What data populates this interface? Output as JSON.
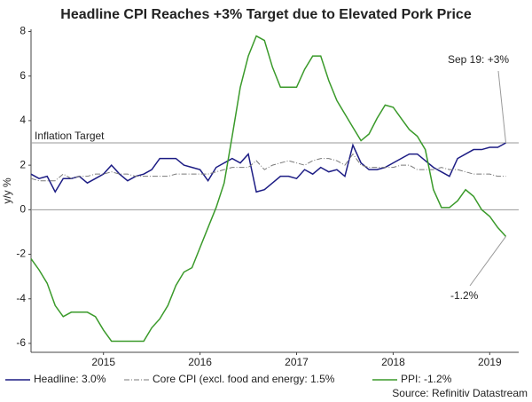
{
  "chart_data": {
    "type": "line",
    "title": "Headline CPI Reaches +3% Target due to Elevated Pork Price",
    "y_label": "y/y %",
    "source": "Source: Refinitiv Datastream",
    "x": [
      2014.75,
      2014.833,
      2014.917,
      2015,
      2015.083,
      2015.167,
      2015.25,
      2015.333,
      2015.417,
      2015.5,
      2015.583,
      2015.667,
      2015.75,
      2015.833,
      2015.917,
      2016,
      2016.083,
      2016.167,
      2016.25,
      2016.333,
      2016.417,
      2016.5,
      2016.583,
      2016.667,
      2016.75,
      2016.833,
      2016.917,
      2017,
      2017.083,
      2017.167,
      2017.25,
      2017.333,
      2017.417,
      2017.5,
      2017.583,
      2017.667,
      2017.75,
      2017.833,
      2017.917,
      2018,
      2018.083,
      2018.167,
      2018.25,
      2018.333,
      2018.417,
      2018.5,
      2018.583,
      2018.667,
      2018.75,
      2018.833,
      2018.917,
      2019,
      2019.083,
      2019.167,
      2019.25,
      2019.333,
      2019.417,
      2019.5,
      2019.583,
      2019.667
    ],
    "xlim": [
      2014.75,
      2019.8
    ],
    "xticks": [
      {
        "value": 2015.5,
        "label": "2015"
      },
      {
        "value": 2016.5,
        "label": "2016"
      },
      {
        "value": 2017.5,
        "label": "2017"
      },
      {
        "value": 2018.5,
        "label": "2018"
      },
      {
        "value": 2019.5,
        "label": "2019"
      }
    ],
    "ylim": [
      -6.4,
      8.1
    ],
    "yticks": [
      -6,
      -4,
      -2,
      0,
      2,
      4,
      6,
      8
    ],
    "reference_lines": [
      {
        "value": 3,
        "label": "Inflation Target"
      },
      {
        "value": 0
      }
    ],
    "series": [
      {
        "name": "Headline: 3.0%",
        "color": "#1c1c84",
        "style": "solid",
        "values": [
          1.6,
          1.4,
          1.5,
          0.8,
          1.4,
          1.4,
          1.5,
          1.2,
          1.4,
          1.6,
          2.0,
          1.6,
          1.3,
          1.5,
          1.6,
          1.8,
          2.3,
          2.3,
          2.3,
          2.0,
          1.9,
          1.8,
          1.3,
          1.9,
          2.1,
          2.3,
          2.1,
          2.5,
          0.8,
          0.9,
          1.2,
          1.5,
          1.5,
          1.4,
          1.8,
          1.6,
          1.9,
          1.7,
          1.8,
          1.5,
          2.9,
          2.1,
          1.8,
          1.8,
          1.9,
          2.1,
          2.3,
          2.5,
          2.5,
          2.2,
          1.9,
          1.7,
          1.5,
          2.3,
          2.5,
          2.7,
          2.7,
          2.8,
          2.8,
          3.0
        ]
      },
      {
        "name": "Core CPI (excl. food and energy: 1.5%",
        "color": "#7a7a7a",
        "style": "dashdot",
        "values": [
          1.4,
          1.3,
          1.3,
          1.3,
          1.6,
          1.4,
          1.5,
          1.5,
          1.6,
          1.6,
          1.7,
          1.6,
          1.6,
          1.5,
          1.5,
          1.5,
          1.5,
          1.5,
          1.6,
          1.6,
          1.6,
          1.6,
          1.6,
          1.7,
          1.8,
          1.9,
          1.9,
          1.9,
          2.2,
          1.8,
          2.0,
          2.1,
          2.2,
          2.1,
          2.0,
          2.2,
          2.3,
          2.3,
          2.2,
          2.0,
          2.5,
          2.0,
          1.9,
          1.9,
          1.9,
          1.9,
          2.0,
          2.0,
          1.8,
          1.8,
          1.8,
          1.9,
          1.8,
          1.8,
          1.7,
          1.6,
          1.6,
          1.6,
          1.5,
          1.5
        ]
      },
      {
        "name": "PPI: -1.2%",
        "color": "#3a9a2a",
        "style": "solid",
        "values": [
          -2.2,
          -2.7,
          -3.3,
          -4.3,
          -4.8,
          -4.6,
          -4.6,
          -4.6,
          -4.8,
          -5.4,
          -5.9,
          -5.9,
          -5.9,
          -5.9,
          -5.9,
          -5.3,
          -4.9,
          -4.3,
          -3.4,
          -2.8,
          -2.6,
          -1.7,
          -0.8,
          0.1,
          1.2,
          3.3,
          5.5,
          6.9,
          7.8,
          7.6,
          6.4,
          5.5,
          5.5,
          5.5,
          6.3,
          6.9,
          6.9,
          5.8,
          4.9,
          4.3,
          3.7,
          3.1,
          3.4,
          4.1,
          4.7,
          4.6,
          4.1,
          3.6,
          3.3,
          2.7,
          0.9,
          0.1,
          0.1,
          0.4,
          0.9,
          0.6,
          0.0,
          -0.3,
          -0.8,
          -1.2
        ]
      }
    ],
    "annotations": [
      {
        "text": "Sep 19: +3%"
      },
      {
        "text": "-1.2%"
      }
    ]
  }
}
